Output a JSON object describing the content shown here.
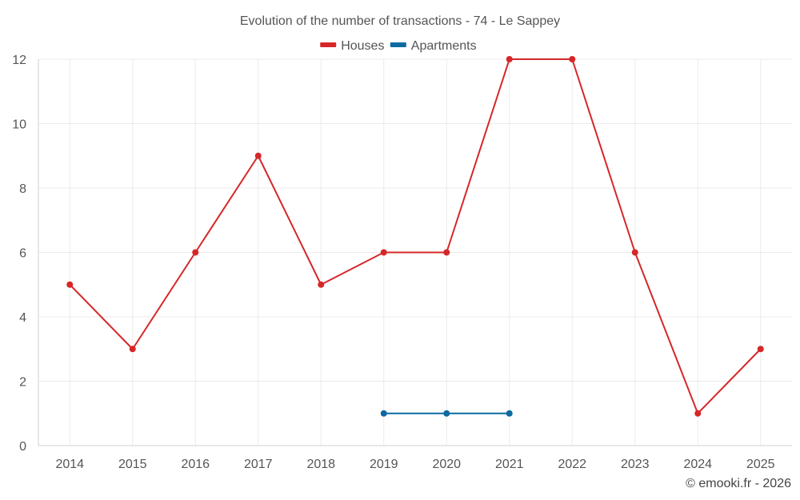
{
  "chart_data": {
    "type": "line",
    "title": "Evolution of the number of transactions - 74 - Le Sappey",
    "xlabel": "",
    "ylabel": "",
    "categories": [
      "2014",
      "2015",
      "2016",
      "2017",
      "2018",
      "2019",
      "2020",
      "2021",
      "2022",
      "2023",
      "2024",
      "2025"
    ],
    "series": [
      {
        "name": "Houses",
        "color": "#d62728",
        "values": [
          5,
          3,
          6,
          9,
          5,
          6,
          6,
          12,
          12,
          6,
          1,
          3
        ]
      },
      {
        "name": "Apartments",
        "color": "#0a6aa1",
        "values": [
          null,
          null,
          null,
          null,
          null,
          1,
          1,
          1,
          null,
          null,
          null,
          null
        ]
      }
    ],
    "ylim": [
      0,
      12
    ],
    "yticks": [
      0,
      2,
      4,
      6,
      8,
      10,
      12
    ],
    "grid": true,
    "legend_position": "top-center"
  },
  "credit": "© emooki.fr - 2026"
}
